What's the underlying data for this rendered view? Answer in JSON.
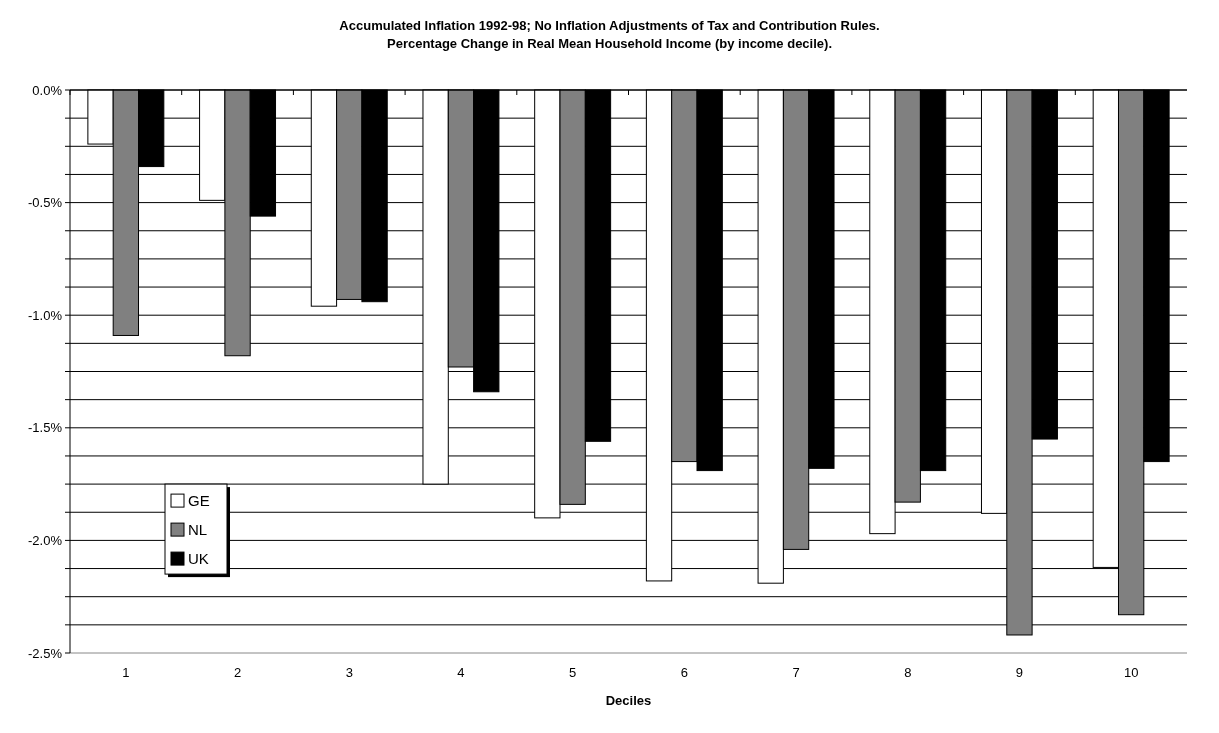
{
  "chart_data": {
    "type": "bar",
    "title": "Accumulated Inflation 1992-98; No Inflation Adjustments of Tax and Contribution Rules.",
    "subtitle": "Percentage Change in Real Mean Household Income (by income decile).",
    "xlabel": "Deciles",
    "categories": [
      "1",
      "2",
      "3",
      "4",
      "5",
      "6",
      "7",
      "8",
      "9",
      "10"
    ],
    "series": [
      {
        "name": "GE",
        "color": "#ffffff",
        "values": [
          -0.24,
          -0.49,
          -0.96,
          -1.75,
          -1.9,
          -2.18,
          -2.19,
          -1.97,
          -1.88,
          -2.12
        ]
      },
      {
        "name": "NL",
        "color": "#808080",
        "values": [
          -1.09,
          -1.18,
          -0.93,
          -1.23,
          -1.84,
          -1.65,
          -2.04,
          -1.83,
          -2.42,
          -2.33
        ]
      },
      {
        "name": "UK",
        "color": "#000000",
        "values": [
          -0.34,
          -0.56,
          -0.94,
          -1.34,
          -1.56,
          -1.69,
          -1.68,
          -1.69,
          -1.55,
          -1.65
        ]
      }
    ],
    "ylim": [
      -2.5,
      0
    ],
    "yticks": [
      {
        "value": 0,
        "label": "0.0%"
      },
      {
        "value": -0.125,
        "label": null
      },
      {
        "value": -0.25,
        "label": null
      },
      {
        "value": -0.375,
        "label": null
      },
      {
        "value": -0.5,
        "label": "-0.5%"
      },
      {
        "value": -0.625,
        "label": null
      },
      {
        "value": -0.75,
        "label": null
      },
      {
        "value": -0.875,
        "label": null
      },
      {
        "value": -1,
        "label": "-1.0%"
      },
      {
        "value": -1.125,
        "label": null
      },
      {
        "value": -1.25,
        "label": null
      },
      {
        "value": -1.375,
        "label": null
      },
      {
        "value": -1.5,
        "label": "-1.5%"
      },
      {
        "value": -1.625,
        "label": null
      },
      {
        "value": -1.75,
        "label": null
      },
      {
        "value": -1.875,
        "label": null
      },
      {
        "value": -2,
        "label": "-2.0%"
      },
      {
        "value": -2.125,
        "label": null
      },
      {
        "value": -2.25,
        "label": null
      },
      {
        "value": -2.375,
        "label": null
      },
      {
        "value": -2.5,
        "label": "-2.5%"
      }
    ],
    "grid": "y",
    "legend": "left"
  }
}
